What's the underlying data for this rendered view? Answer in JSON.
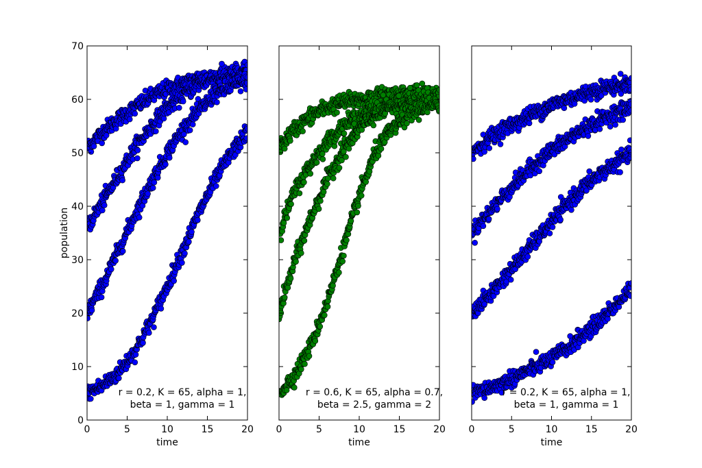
{
  "figure": {
    "background": "#ffffff"
  },
  "chart_data": [
    {
      "type": "scatter",
      "xlabel": "time",
      "ylabel": "population",
      "xlim": [
        0,
        20
      ],
      "ylim": [
        0,
        70
      ],
      "xticks": [
        0,
        5,
        10,
        15,
        20
      ],
      "yticks": [
        0,
        10,
        20,
        30,
        40,
        50,
        60,
        70
      ],
      "show_yticklabels": true,
      "color": "#0000ff",
      "annotation": [
        "r = 0.2, K = 65, alpha = 1,",
        "beta = 1, gamma = 1"
      ],
      "model": {
        "r": 0.2,
        "K": 65,
        "alpha": 1,
        "beta": 1,
        "gamma": 1
      },
      "series": [
        {
          "y0": 51,
          "x": [
            0,
            2,
            4,
            6,
            8,
            10,
            12,
            14,
            16,
            18,
            20
          ],
          "y": [
            51,
            54,
            56.5,
            58.5,
            60.5,
            62,
            63,
            64,
            64.5,
            65,
            65
          ]
        },
        {
          "y0": 36,
          "x": [
            0,
            2,
            4,
            6,
            8,
            10,
            12,
            14,
            16,
            18,
            20
          ],
          "y": [
            36,
            41,
            46,
            51,
            55,
            58.5,
            61,
            63,
            64,
            64.5,
            65
          ]
        },
        {
          "y0": 20,
          "x": [
            0,
            2,
            4,
            6,
            8,
            10,
            12,
            14,
            16,
            18,
            20
          ],
          "y": [
            20,
            25.5,
            32,
            38.5,
            44.5,
            50,
            54.5,
            58,
            61,
            62.5,
            63.5
          ]
        },
        {
          "y0": 5,
          "x": [
            0,
            2,
            4,
            6,
            8,
            10,
            12,
            14,
            16,
            18,
            20
          ],
          "y": [
            5,
            6.5,
            9,
            13,
            18.5,
            25,
            32,
            39,
            45,
            50,
            54
          ]
        }
      ]
    },
    {
      "type": "scatter",
      "xlabel": "time",
      "ylabel": "",
      "xlim": [
        0,
        20
      ],
      "ylim": [
        0,
        70
      ],
      "xticks": [
        0,
        5,
        10,
        15,
        20
      ],
      "yticks": [
        0,
        10,
        20,
        30,
        40,
        50,
        60,
        70
      ],
      "show_yticklabels": false,
      "color": "#008000",
      "annotation": [
        "r = 0.6, K = 65, alpha = 0.7,",
        "beta = 2.5, gamma = 2"
      ],
      "model": {
        "r": 0.6,
        "K": 65,
        "alpha": 0.7,
        "beta": 2.5,
        "gamma": 2
      },
      "series": [
        {
          "y0": 51,
          "x": [
            0,
            2,
            4,
            6,
            8,
            10,
            12,
            14,
            16,
            18,
            20
          ],
          "y": [
            51,
            54.5,
            57,
            58.5,
            59.5,
            60,
            60.5,
            61,
            61,
            61,
            61
          ]
        },
        {
          "y0": 35,
          "x": [
            0,
            2,
            4,
            6,
            8,
            10,
            12,
            14,
            16,
            18,
            20
          ],
          "y": [
            35,
            43,
            48,
            52,
            55,
            57,
            58.5,
            59.5,
            60,
            60.5,
            60.5
          ]
        },
        {
          "y0": 20,
          "x": [
            0,
            2,
            4,
            6,
            8,
            10,
            12,
            14,
            16,
            18,
            20
          ],
          "y": [
            20,
            30,
            38,
            45,
            50.5,
            54.5,
            57,
            58.5,
            59.5,
            60,
            60.5
          ]
        },
        {
          "y0": 5,
          "x": [
            0,
            2,
            4,
            6,
            8,
            10,
            12,
            14,
            16,
            18,
            20
          ],
          "y": [
            5,
            8.5,
            14,
            22,
            32,
            42,
            50,
            54.5,
            57,
            58.5,
            59
          ]
        }
      ]
    },
    {
      "type": "scatter",
      "xlabel": "time",
      "ylabel": "",
      "xlim": [
        0,
        20
      ],
      "ylim": [
        0,
        70
      ],
      "xticks": [
        0,
        5,
        10,
        15,
        20
      ],
      "yticks": [
        0,
        10,
        20,
        30,
        40,
        50,
        60,
        70
      ],
      "show_yticklabels": false,
      "color": "#0000ff",
      "annotation": [
        "r = 0.2, K = 65, alpha = 1,",
        "beta = 1, gamma = 1"
      ],
      "model": {
        "r": 0.2,
        "K": 65,
        "alpha": 1,
        "beta": 1,
        "gamma": 1
      },
      "series": [
        {
          "y0": 50,
          "x": [
            0,
            2,
            4,
            6,
            8,
            10,
            12,
            14,
            16,
            18,
            20
          ],
          "y": [
            50,
            52.5,
            54.5,
            56,
            57.5,
            59,
            60,
            61,
            62,
            62.5,
            63
          ]
        },
        {
          "y0": 35,
          "x": [
            0,
            2,
            4,
            6,
            8,
            10,
            12,
            14,
            16,
            18,
            20
          ],
          "y": [
            35,
            38.5,
            42,
            45,
            48,
            50.5,
            52.5,
            54.5,
            56,
            57.5,
            58.5
          ]
        },
        {
          "y0": 20,
          "x": [
            0,
            2,
            4,
            6,
            8,
            10,
            12,
            14,
            16,
            18,
            20
          ],
          "y": [
            20,
            23,
            26.5,
            30,
            33.5,
            37,
            40.5,
            43.5,
            46,
            48,
            50
          ]
        },
        {
          "y0": 5,
          "x": [
            0,
            2,
            4,
            6,
            8,
            10,
            12,
            14,
            16,
            18,
            20
          ],
          "y": [
            5,
            5.8,
            7,
            8.5,
            10,
            11.5,
            13.5,
            16,
            18.5,
            21.5,
            24.5
          ]
        }
      ]
    }
  ]
}
